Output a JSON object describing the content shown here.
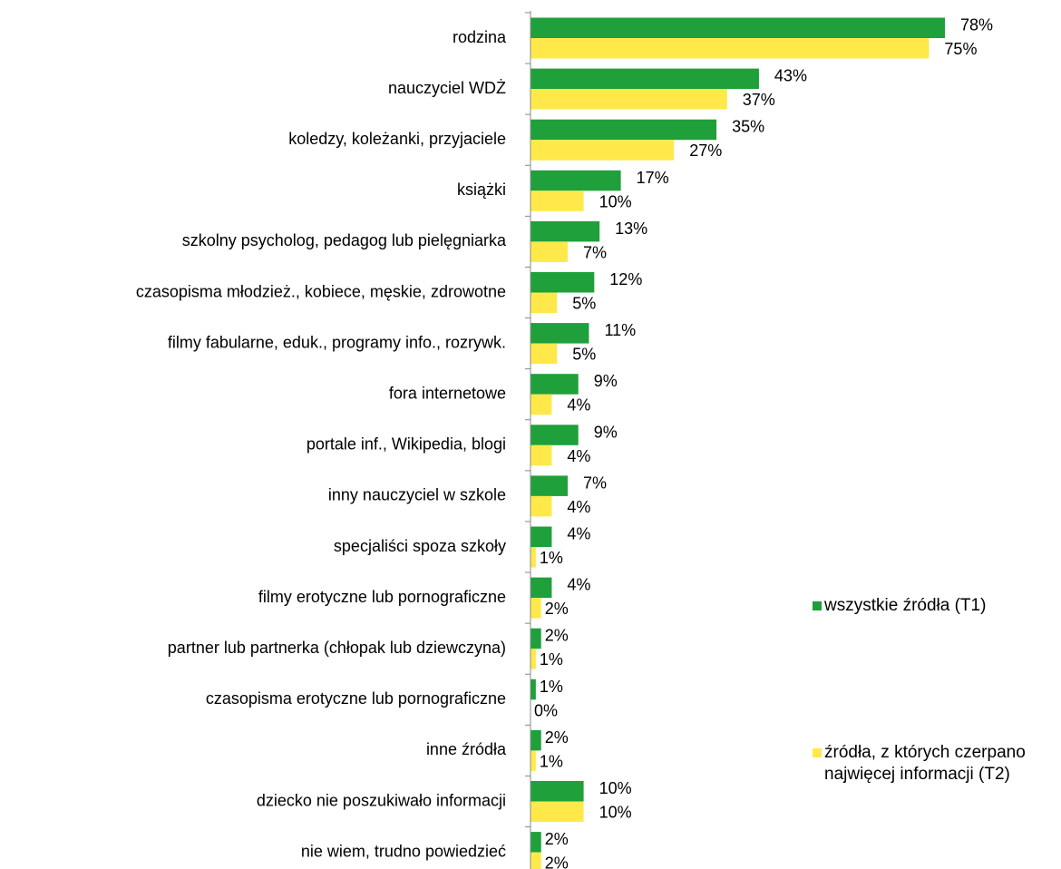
{
  "chart_data": {
    "type": "hbar",
    "categories": [
      "rodzina",
      "nauczyciel WDŻ",
      "koledzy, koleżanki, przyjaciele",
      "książki",
      "szkolny psycholog, pedagog lub pielęgniarka",
      "czasopisma młodzież., kobiece, męskie, zdrowotne",
      "filmy fabularne, eduk., programy info., rozrywk.",
      "fora internetowe",
      "portale inf., Wikipedia, blogi",
      "inny nauczyciel w szkole",
      "specjaliści spoza szkoły",
      "filmy erotyczne lub pornograficzne",
      "partner lub partnerka (chłopak lub dziewczyna)",
      "czasopisma erotyczne lub pornograficzne",
      "inne źródła",
      "dziecko nie poszukiwało informacji",
      "nie wiem, trudno powiedzieć"
    ],
    "series": [
      {
        "name": "wszystkie źródła (T1)",
        "color": "#1fa03a",
        "values": [
          78,
          43,
          35,
          17,
          13,
          12,
          11,
          9,
          9,
          7,
          4,
          4,
          2,
          1,
          2,
          10,
          2
        ],
        "value_labels": [
          "78%",
          "43%",
          "35%",
          "17%",
          "13%",
          "12%",
          "11%",
          "9%",
          "9%",
          "7%",
          "4%",
          "4%",
          "2%",
          "1%",
          "2%",
          "10%",
          "2%"
        ]
      },
      {
        "name": "źródła, z których czerpano najwięcej informacji (T2)",
        "color": "#ffe94a",
        "values": [
          75,
          37,
          27,
          10,
          7,
          5,
          5,
          4,
          4,
          4,
          1,
          2,
          1,
          0,
          1,
          10,
          2
        ],
        "value_labels": [
          "75%",
          "37%",
          "27%",
          "10%",
          "7%",
          "5%",
          "5%",
          "4%",
          "4%",
          "4%",
          "1%",
          "2%",
          "1%",
          "0%",
          "1%",
          "10%",
          "2%"
        ]
      }
    ],
    "legend": "right"
  }
}
